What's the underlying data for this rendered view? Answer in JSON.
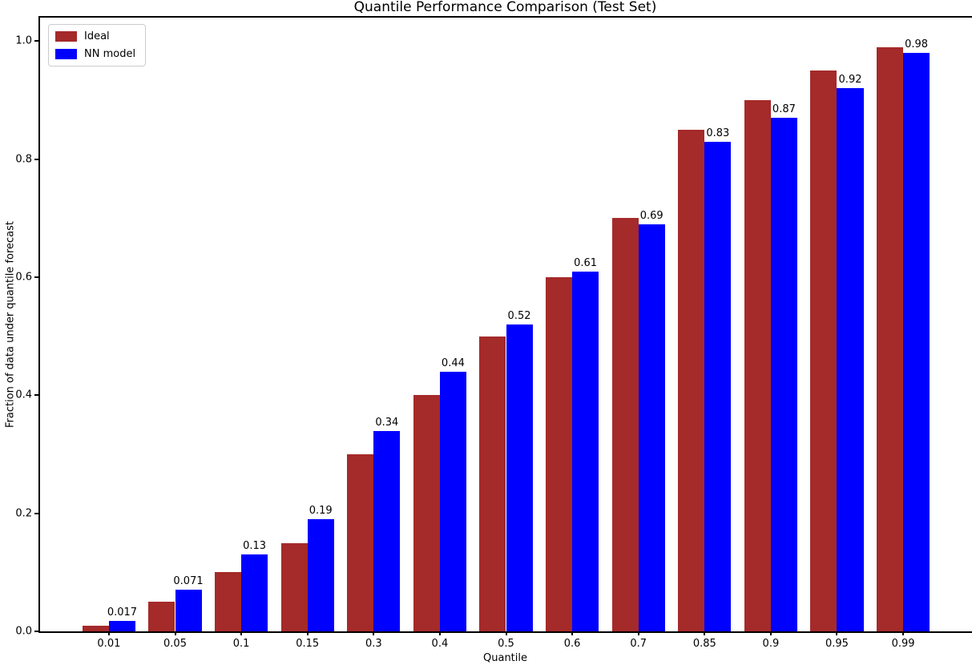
{
  "chart_data": {
    "type": "bar",
    "title": "Quantile Performance Comparison (Test Set)",
    "xlabel": "Quantile",
    "ylabel": "Fraction of data under quantile forecast",
    "categories": [
      "0.01",
      "0.05",
      "0.1",
      "0.15",
      "0.3",
      "0.4",
      "0.5",
      "0.6",
      "0.7",
      "0.85",
      "0.9",
      "0.95",
      "0.99"
    ],
    "series": [
      {
        "name": "Ideal",
        "color": "#a52a2a",
        "values": [
          0.01,
          0.05,
          0.1,
          0.15,
          0.3,
          0.4,
          0.5,
          0.6,
          0.7,
          0.85,
          0.9,
          0.95,
          0.99
        ]
      },
      {
        "name": "NN model",
        "color": "#0000ff",
        "values": [
          0.017,
          0.071,
          0.13,
          0.19,
          0.34,
          0.44,
          0.52,
          0.61,
          0.69,
          0.83,
          0.87,
          0.92,
          0.98
        ],
        "bar_labels": [
          "0.017",
          "0.071",
          "0.13",
          "0.19",
          "0.34",
          "0.44",
          "0.52",
          "0.61",
          "0.69",
          "0.83",
          "0.87",
          "0.92",
          "0.98"
        ]
      }
    ],
    "yticks": [
      "0.0",
      "0.2",
      "0.4",
      "0.6",
      "0.8",
      "1.0"
    ],
    "ylim": [
      0,
      1.04
    ],
    "xlim": [
      -1.04,
      13.04
    ],
    "bar_width": 0.4,
    "grid": false,
    "legend_position": "upper left",
    "annotated_series": "NN model"
  }
}
